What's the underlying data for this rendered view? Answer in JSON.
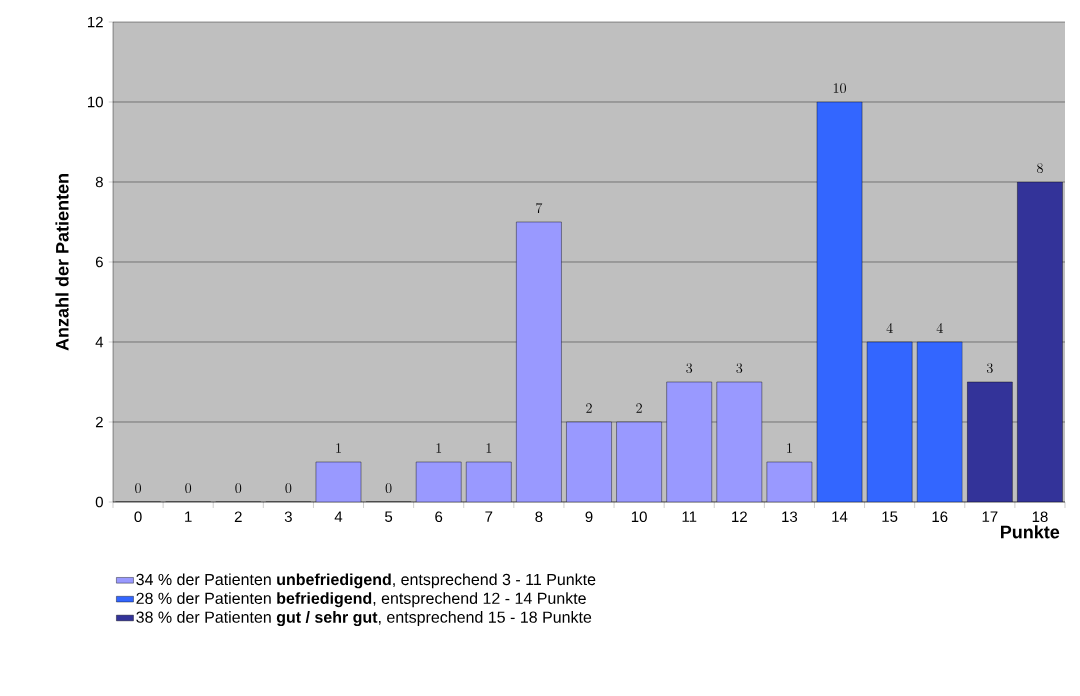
{
  "chart_data": {
    "type": "bar",
    "xlabel": "Punkte",
    "ylabel": "Anzahl der Patienten",
    "categories": [
      "0",
      "1",
      "2",
      "3",
      "4",
      "5",
      "6",
      "7",
      "8",
      "9",
      "10",
      "11",
      "12",
      "13",
      "14",
      "15",
      "16",
      "17",
      "18"
    ],
    "series": [
      {
        "name": "34 % der Patienten **unbefriedigend**, entsprechend 3 - 11  Punkte",
        "color": "#9999ff",
        "values": [
          0,
          0,
          0,
          0,
          1,
          0,
          1,
          1,
          7,
          2,
          2,
          3,
          3,
          1,
          null,
          null,
          null,
          null,
          null
        ]
      },
      {
        "name": "28 % der Patienten **befriedigend**, entsprechend 12 - 14 Punkte",
        "color": "#3366ff",
        "values": [
          null,
          null,
          null,
          null,
          null,
          null,
          null,
          null,
          null,
          null,
          null,
          null,
          null,
          null,
          10,
          4,
          4,
          null,
          null
        ]
      },
      {
        "name": "38 % der Patienten **gut / sehr gut**, entsprechend 15 - 18 Punkte",
        "color": "#333399",
        "values": [
          null,
          null,
          null,
          null,
          null,
          null,
          null,
          null,
          null,
          null,
          null,
          null,
          null,
          null,
          null,
          null,
          null,
          3,
          8
        ]
      }
    ],
    "ylim": [
      0,
      12
    ],
    "yticks": [
      0,
      2,
      4,
      6,
      8,
      10,
      12
    ],
    "grid": "y",
    "data_labels": true,
    "legend": "bottom"
  }
}
